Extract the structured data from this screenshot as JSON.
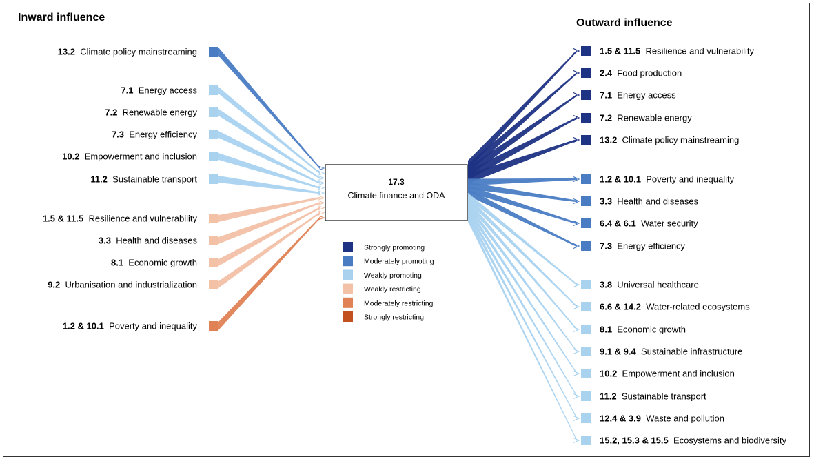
{
  "colors": {
    "strongly_promoting": "#1f3385",
    "moderately_promoting": "#4a7cc4",
    "weakly_promoting": "#a9d2ef",
    "weakly_restricting": "#f2c1a6",
    "moderately_restricting": "#e08256",
    "strongly_restricting": "#c2511f"
  },
  "inward": {
    "title": "Inward influence",
    "items": [
      {
        "code": "13.2",
        "label": "Climate policy mainstreaming",
        "level": "moderately_promoting"
      },
      {
        "code": "7.1",
        "label": "Energy access",
        "level": "weakly_promoting"
      },
      {
        "code": "7.2",
        "label": "Renewable energy",
        "level": "weakly_promoting"
      },
      {
        "code": "7.3",
        "label": "Energy efficiency",
        "level": "weakly_promoting"
      },
      {
        "code": "10.2",
        "label": "Empowerment and inclusion",
        "level": "weakly_promoting"
      },
      {
        "code": "11.2",
        "label": "Sustainable transport",
        "level": "weakly_promoting"
      },
      {
        "code": "1.5 & 11.5",
        "label": "Resilience and vulnerability",
        "level": "weakly_restricting"
      },
      {
        "code": "3.3",
        "label": "Health and diseases",
        "level": "weakly_restricting"
      },
      {
        "code": "8.1",
        "label": "Economic growth",
        "level": "weakly_restricting"
      },
      {
        "code": "9.2",
        "label": "Urbanisation and industrialization",
        "level": "weakly_restricting"
      },
      {
        "code": "1.2 & 10.1",
        "label": "Poverty and inequality",
        "level": "moderately_restricting"
      }
    ]
  },
  "outward": {
    "title": "Outward influence",
    "items": [
      {
        "code": "1.5 & 11.5",
        "label": "Resilience and vulnerability",
        "level": "strongly_promoting"
      },
      {
        "code": "2.4",
        "label": "Food production",
        "level": "strongly_promoting"
      },
      {
        "code": "7.1",
        "label": "Energy access",
        "level": "strongly_promoting"
      },
      {
        "code": "7.2",
        "label": "Renewable energy",
        "level": "strongly_promoting"
      },
      {
        "code": "13.2",
        "label": "Climate policy mainstreaming",
        "level": "strongly_promoting"
      },
      {
        "code": "1.2 & 10.1",
        "label": "Poverty and inequality",
        "level": "moderately_promoting"
      },
      {
        "code": "3.3",
        "label": "Health and diseases",
        "level": "moderately_promoting"
      },
      {
        "code": "6.4 & 6.1",
        "label": "Water security",
        "level": "moderately_promoting"
      },
      {
        "code": "7.3",
        "label": "Energy efficiency",
        "level": "moderately_promoting"
      },
      {
        "code": "3.8",
        "label": "Universal healthcare",
        "level": "weakly_promoting"
      },
      {
        "code": "6.6 & 14.2",
        "label": "Water-related ecosystems",
        "level": "weakly_promoting"
      },
      {
        "code": "8.1",
        "label": "Economic growth",
        "level": "weakly_promoting"
      },
      {
        "code": "9.1 & 9.4",
        "label": "Sustainable infrastructure",
        "level": "weakly_promoting"
      },
      {
        "code": "10.2",
        "label": "Empowerment and inclusion",
        "level": "weakly_promoting"
      },
      {
        "code": "11.2",
        "label": "Sustainable transport",
        "level": "weakly_promoting"
      },
      {
        "code": "12.4 & 3.9",
        "label": "Waste and pollution",
        "level": "weakly_promoting"
      },
      {
        "code": "15.2, 15.3 & 15.5",
        "label": "Ecosystems and biodiversity",
        "level": "weakly_promoting"
      }
    ]
  },
  "center": {
    "code": "17.3",
    "label": "Climate finance and ODA"
  },
  "legend": [
    {
      "label": "Strongly promoting",
      "level": "strongly_promoting"
    },
    {
      "label": "Moderately promoting",
      "level": "moderately_promoting"
    },
    {
      "label": "Weakly promoting",
      "level": "weakly_promoting"
    },
    {
      "label": "Weakly restricting",
      "level": "weakly_restricting"
    },
    {
      "label": "Moderately restricting",
      "level": "moderately_restricting"
    },
    {
      "label": "Strongly restricting",
      "level": "strongly_restricting"
    }
  ]
}
